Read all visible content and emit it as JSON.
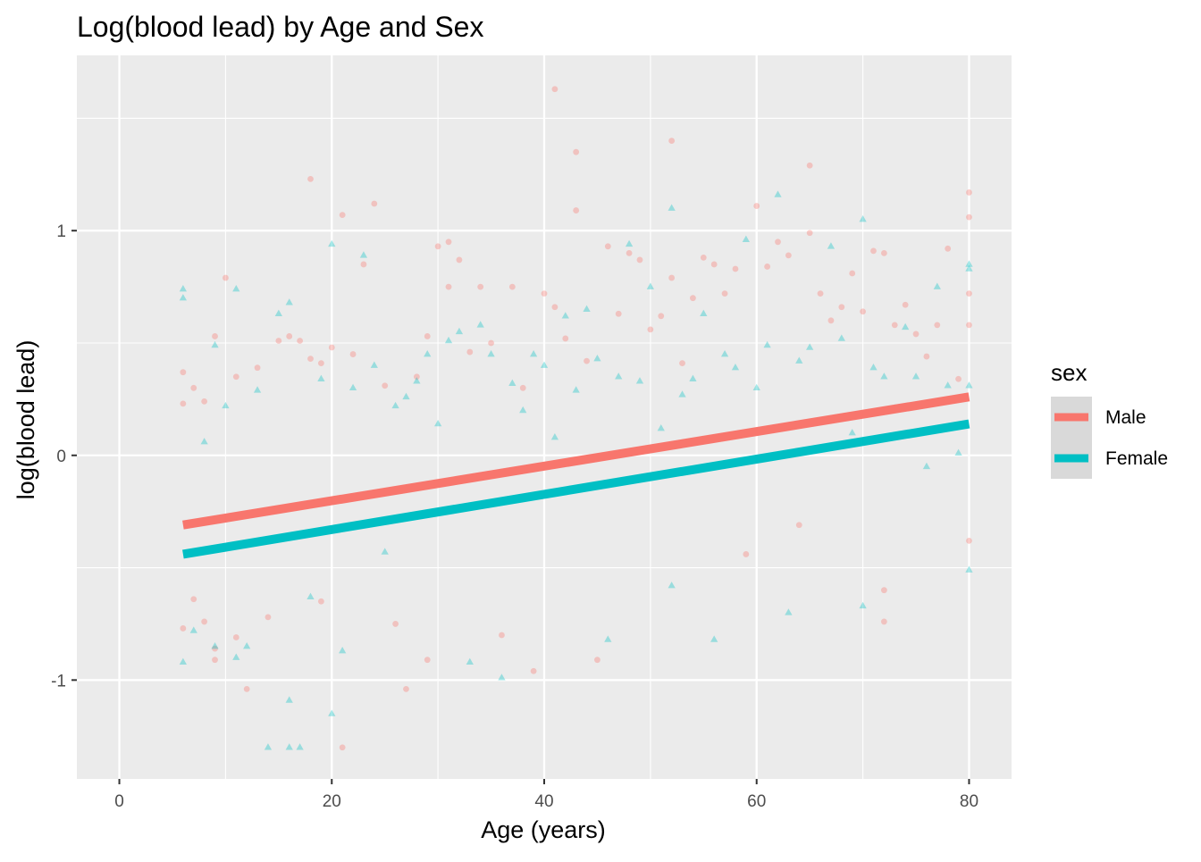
{
  "chart_data": {
    "type": "scatter",
    "title": "Log(blood lead) by Age and Sex",
    "xlabel": "Age (years)",
    "ylabel": "log(blood lead)",
    "xlim": [
      -4,
      84
    ],
    "ylim": [
      -1.44,
      1.78
    ],
    "x_ticks": [
      0,
      20,
      40,
      60,
      80
    ],
    "x_tick_labels": [
      "0",
      "20",
      "40",
      "60",
      "80"
    ],
    "y_ticks": [
      -1,
      0,
      1
    ],
    "y_tick_labels": [
      "-1",
      "0",
      "1"
    ],
    "grid": true,
    "legend": {
      "title": "sex",
      "position": "right",
      "entries": [
        {
          "label": "Male",
          "color": "#F8766D"
        },
        {
          "label": "Female",
          "color": "#00BFC4"
        }
      ]
    },
    "series": [
      {
        "name": "Male",
        "color": "#F8766D",
        "marker": "circle",
        "fit_line": {
          "x": [
            6,
            80
          ],
          "y": [
            -0.31,
            0.26
          ]
        },
        "points": [
          [
            6,
            0.37
          ],
          [
            6,
            -0.77
          ],
          [
            6,
            0.23
          ],
          [
            7,
            0.3
          ],
          [
            7,
            -0.64
          ],
          [
            8,
            0.24
          ],
          [
            8,
            -0.74
          ],
          [
            9,
            0.53
          ],
          [
            9,
            -0.91
          ],
          [
            9,
            -0.86
          ],
          [
            10,
            0.79
          ],
          [
            11,
            0.35
          ],
          [
            11,
            -0.81
          ],
          [
            12,
            -1.04
          ],
          [
            13,
            0.39
          ],
          [
            14,
            -0.72
          ],
          [
            15,
            0.51
          ],
          [
            16,
            0.53
          ],
          [
            17,
            0.51
          ],
          [
            18,
            1.23
          ],
          [
            18,
            0.43
          ],
          [
            19,
            0.41
          ],
          [
            19,
            -0.65
          ],
          [
            20,
            0.48
          ],
          [
            21,
            1.07
          ],
          [
            21,
            -1.3
          ],
          [
            22,
            0.45
          ],
          [
            23,
            0.85
          ],
          [
            24,
            1.12
          ],
          [
            25,
            0.31
          ],
          [
            26,
            -0.75
          ],
          [
            27,
            -1.04
          ],
          [
            28,
            0.35
          ],
          [
            29,
            0.53
          ],
          [
            29,
            -0.91
          ],
          [
            30,
            0.93
          ],
          [
            31,
            0.95
          ],
          [
            31,
            0.75
          ],
          [
            32,
            0.87
          ],
          [
            33,
            0.46
          ],
          [
            34,
            0.75
          ],
          [
            35,
            0.5
          ],
          [
            36,
            -0.8
          ],
          [
            37,
            0.75
          ],
          [
            38,
            0.3
          ],
          [
            39,
            -0.96
          ],
          [
            40,
            0.72
          ],
          [
            41,
            1.63
          ],
          [
            41,
            0.66
          ],
          [
            42,
            0.52
          ],
          [
            43,
            1.35
          ],
          [
            43,
            1.09
          ],
          [
            44,
            0.42
          ],
          [
            45,
            -0.91
          ],
          [
            46,
            0.93
          ],
          [
            47,
            0.63
          ],
          [
            48,
            0.9
          ],
          [
            49,
            0.87
          ],
          [
            50,
            0.56
          ],
          [
            51,
            0.62
          ],
          [
            52,
            1.4
          ],
          [
            52,
            0.79
          ],
          [
            53,
            0.41
          ],
          [
            54,
            0.7
          ],
          [
            55,
            0.88
          ],
          [
            56,
            0.85
          ],
          [
            57,
            0.72
          ],
          [
            58,
            0.83
          ],
          [
            59,
            -0.44
          ],
          [
            60,
            1.11
          ],
          [
            61,
            0.84
          ],
          [
            62,
            0.95
          ],
          [
            63,
            0.89
          ],
          [
            64,
            -0.31
          ],
          [
            65,
            1.29
          ],
          [
            65,
            0.99
          ],
          [
            66,
            0.72
          ],
          [
            67,
            0.6
          ],
          [
            68,
            0.66
          ],
          [
            69,
            0.81
          ],
          [
            70,
            0.64
          ],
          [
            71,
            0.91
          ],
          [
            72,
            -0.6
          ],
          [
            72,
            -0.74
          ],
          [
            72,
            0.9
          ],
          [
            73,
            0.58
          ],
          [
            74,
            0.67
          ],
          [
            75,
            0.54
          ],
          [
            76,
            0.44
          ],
          [
            77,
            0.58
          ],
          [
            78,
            0.92
          ],
          [
            79,
            0.34
          ],
          [
            80,
            1.17
          ],
          [
            80,
            1.06
          ],
          [
            80,
            0.72
          ],
          [
            80,
            0.58
          ],
          [
            80,
            -0.38
          ]
        ]
      },
      {
        "name": "Female",
        "color": "#00BFC4",
        "marker": "triangle",
        "fit_line": {
          "x": [
            6,
            80
          ],
          "y": [
            -0.44,
            0.14
          ]
        },
        "points": [
          [
            6,
            0.74
          ],
          [
            6,
            0.7
          ],
          [
            6,
            -0.92
          ],
          [
            7,
            -0.78
          ],
          [
            8,
            0.06
          ],
          [
            9,
            0.49
          ],
          [
            9,
            -0.85
          ],
          [
            10,
            0.22
          ],
          [
            11,
            0.74
          ],
          [
            11,
            -0.9
          ],
          [
            12,
            -0.85
          ],
          [
            13,
            0.29
          ],
          [
            14,
            -1.3
          ],
          [
            15,
            0.63
          ],
          [
            16,
            0.68
          ],
          [
            16,
            -1.09
          ],
          [
            16,
            -1.3
          ],
          [
            17,
            -1.3
          ],
          [
            18,
            -0.63
          ],
          [
            19,
            0.34
          ],
          [
            20,
            0.94
          ],
          [
            20,
            -1.15
          ],
          [
            21,
            -0.87
          ],
          [
            22,
            0.3
          ],
          [
            23,
            0.89
          ],
          [
            24,
            0.4
          ],
          [
            25,
            -0.43
          ],
          [
            26,
            0.22
          ],
          [
            27,
            0.26
          ],
          [
            28,
            0.33
          ],
          [
            29,
            0.45
          ],
          [
            30,
            0.14
          ],
          [
            31,
            0.51
          ],
          [
            32,
            0.55
          ],
          [
            33,
            -0.92
          ],
          [
            34,
            0.58
          ],
          [
            35,
            0.45
          ],
          [
            36,
            -0.99
          ],
          [
            37,
            0.32
          ],
          [
            38,
            0.2
          ],
          [
            39,
            0.45
          ],
          [
            40,
            0.4
          ],
          [
            41,
            0.08
          ],
          [
            42,
            0.62
          ],
          [
            43,
            0.29
          ],
          [
            44,
            0.65
          ],
          [
            45,
            0.43
          ],
          [
            46,
            -0.82
          ],
          [
            47,
            0.35
          ],
          [
            48,
            0.94
          ],
          [
            49,
            0.33
          ],
          [
            50,
            0.75
          ],
          [
            51,
            0.12
          ],
          [
            52,
            1.1
          ],
          [
            52,
            -0.58
          ],
          [
            53,
            0.27
          ],
          [
            54,
            0.34
          ],
          [
            55,
            0.63
          ],
          [
            56,
            -0.82
          ],
          [
            57,
            0.45
          ],
          [
            58,
            0.39
          ],
          [
            59,
            0.96
          ],
          [
            60,
            0.3
          ],
          [
            61,
            0.49
          ],
          [
            62,
            1.16
          ],
          [
            63,
            -0.7
          ],
          [
            64,
            0.42
          ],
          [
            65,
            0.48
          ],
          [
            66,
            0.15
          ],
          [
            67,
            0.93
          ],
          [
            68,
            0.52
          ],
          [
            69,
            0.1
          ],
          [
            70,
            1.05
          ],
          [
            70,
            -0.67
          ],
          [
            71,
            0.39
          ],
          [
            72,
            0.35
          ],
          [
            73,
            0.21
          ],
          [
            74,
            0.57
          ],
          [
            75,
            0.35
          ],
          [
            76,
            -0.05
          ],
          [
            77,
            0.75
          ],
          [
            78,
            0.31
          ],
          [
            79,
            0.01
          ],
          [
            80,
            0.85
          ],
          [
            80,
            0.83
          ],
          [
            80,
            -0.51
          ],
          [
            80,
            0.31
          ]
        ]
      }
    ]
  }
}
